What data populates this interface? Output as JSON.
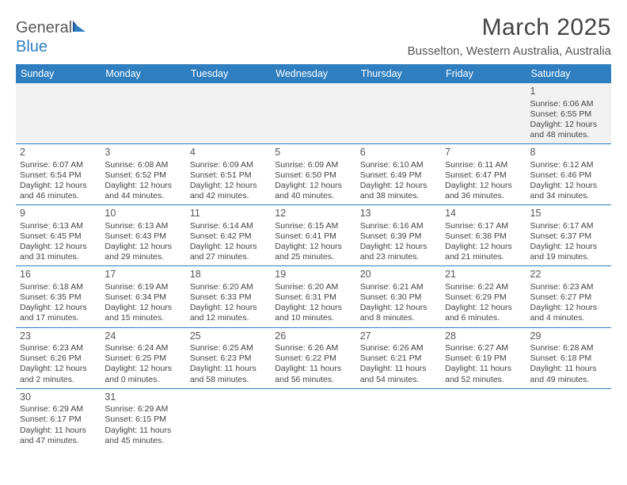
{
  "header": {
    "logo_word1": "General",
    "logo_word2": "Blue",
    "title": "March 2025",
    "subtitle": "Busselton, Western Australia, Australia"
  },
  "colors": {
    "accent": "#2f7fc0",
    "text": "#444444",
    "grid_bg_first_row": "#f1f1f1",
    "header_text": "#ffffff"
  },
  "weekdays": [
    "Sunday",
    "Monday",
    "Tuesday",
    "Wednesday",
    "Thursday",
    "Friday",
    "Saturday"
  ],
  "weeks": [
    [
      null,
      null,
      null,
      null,
      null,
      null,
      {
        "day": "1",
        "sunrise": "Sunrise: 6:06 AM",
        "sunset": "Sunset: 6:55 PM",
        "daylight": "Daylight: 12 hours and 48 minutes."
      }
    ],
    [
      {
        "day": "2",
        "sunrise": "Sunrise: 6:07 AM",
        "sunset": "Sunset: 6:54 PM",
        "daylight": "Daylight: 12 hours and 46 minutes."
      },
      {
        "day": "3",
        "sunrise": "Sunrise: 6:08 AM",
        "sunset": "Sunset: 6:52 PM",
        "daylight": "Daylight: 12 hours and 44 minutes."
      },
      {
        "day": "4",
        "sunrise": "Sunrise: 6:09 AM",
        "sunset": "Sunset: 6:51 PM",
        "daylight": "Daylight: 12 hours and 42 minutes."
      },
      {
        "day": "5",
        "sunrise": "Sunrise: 6:09 AM",
        "sunset": "Sunset: 6:50 PM",
        "daylight": "Daylight: 12 hours and 40 minutes."
      },
      {
        "day": "6",
        "sunrise": "Sunrise: 6:10 AM",
        "sunset": "Sunset: 6:49 PM",
        "daylight": "Daylight: 12 hours and 38 minutes."
      },
      {
        "day": "7",
        "sunrise": "Sunrise: 6:11 AM",
        "sunset": "Sunset: 6:47 PM",
        "daylight": "Daylight: 12 hours and 36 minutes."
      },
      {
        "day": "8",
        "sunrise": "Sunrise: 6:12 AM",
        "sunset": "Sunset: 6:46 PM",
        "daylight": "Daylight: 12 hours and 34 minutes."
      }
    ],
    [
      {
        "day": "9",
        "sunrise": "Sunrise: 6:13 AM",
        "sunset": "Sunset: 6:45 PM",
        "daylight": "Daylight: 12 hours and 31 minutes."
      },
      {
        "day": "10",
        "sunrise": "Sunrise: 6:13 AM",
        "sunset": "Sunset: 6:43 PM",
        "daylight": "Daylight: 12 hours and 29 minutes."
      },
      {
        "day": "11",
        "sunrise": "Sunrise: 6:14 AM",
        "sunset": "Sunset: 6:42 PM",
        "daylight": "Daylight: 12 hours and 27 minutes."
      },
      {
        "day": "12",
        "sunrise": "Sunrise: 6:15 AM",
        "sunset": "Sunset: 6:41 PM",
        "daylight": "Daylight: 12 hours and 25 minutes."
      },
      {
        "day": "13",
        "sunrise": "Sunrise: 6:16 AM",
        "sunset": "Sunset: 6:39 PM",
        "daylight": "Daylight: 12 hours and 23 minutes."
      },
      {
        "day": "14",
        "sunrise": "Sunrise: 6:17 AM",
        "sunset": "Sunset: 6:38 PM",
        "daylight": "Daylight: 12 hours and 21 minutes."
      },
      {
        "day": "15",
        "sunrise": "Sunrise: 6:17 AM",
        "sunset": "Sunset: 6:37 PM",
        "daylight": "Daylight: 12 hours and 19 minutes."
      }
    ],
    [
      {
        "day": "16",
        "sunrise": "Sunrise: 6:18 AM",
        "sunset": "Sunset: 6:35 PM",
        "daylight": "Daylight: 12 hours and 17 minutes."
      },
      {
        "day": "17",
        "sunrise": "Sunrise: 6:19 AM",
        "sunset": "Sunset: 6:34 PM",
        "daylight": "Daylight: 12 hours and 15 minutes."
      },
      {
        "day": "18",
        "sunrise": "Sunrise: 6:20 AM",
        "sunset": "Sunset: 6:33 PM",
        "daylight": "Daylight: 12 hours and 12 minutes."
      },
      {
        "day": "19",
        "sunrise": "Sunrise: 6:20 AM",
        "sunset": "Sunset: 6:31 PM",
        "daylight": "Daylight: 12 hours and 10 minutes."
      },
      {
        "day": "20",
        "sunrise": "Sunrise: 6:21 AM",
        "sunset": "Sunset: 6:30 PM",
        "daylight": "Daylight: 12 hours and 8 minutes."
      },
      {
        "day": "21",
        "sunrise": "Sunrise: 6:22 AM",
        "sunset": "Sunset: 6:29 PM",
        "daylight": "Daylight: 12 hours and 6 minutes."
      },
      {
        "day": "22",
        "sunrise": "Sunrise: 6:23 AM",
        "sunset": "Sunset: 6:27 PM",
        "daylight": "Daylight: 12 hours and 4 minutes."
      }
    ],
    [
      {
        "day": "23",
        "sunrise": "Sunrise: 6:23 AM",
        "sunset": "Sunset: 6:26 PM",
        "daylight": "Daylight: 12 hours and 2 minutes."
      },
      {
        "day": "24",
        "sunrise": "Sunrise: 6:24 AM",
        "sunset": "Sunset: 6:25 PM",
        "daylight": "Daylight: 12 hours and 0 minutes."
      },
      {
        "day": "25",
        "sunrise": "Sunrise: 6:25 AM",
        "sunset": "Sunset: 6:23 PM",
        "daylight": "Daylight: 11 hours and 58 minutes."
      },
      {
        "day": "26",
        "sunrise": "Sunrise: 6:26 AM",
        "sunset": "Sunset: 6:22 PM",
        "daylight": "Daylight: 11 hours and 56 minutes."
      },
      {
        "day": "27",
        "sunrise": "Sunrise: 6:26 AM",
        "sunset": "Sunset: 6:21 PM",
        "daylight": "Daylight: 11 hours and 54 minutes."
      },
      {
        "day": "28",
        "sunrise": "Sunrise: 6:27 AM",
        "sunset": "Sunset: 6:19 PM",
        "daylight": "Daylight: 11 hours and 52 minutes."
      },
      {
        "day": "29",
        "sunrise": "Sunrise: 6:28 AM",
        "sunset": "Sunset: 6:18 PM",
        "daylight": "Daylight: 11 hours and 49 minutes."
      }
    ],
    [
      {
        "day": "30",
        "sunrise": "Sunrise: 6:29 AM",
        "sunset": "Sunset: 6:17 PM",
        "daylight": "Daylight: 11 hours and 47 minutes."
      },
      {
        "day": "31",
        "sunrise": "Sunrise: 6:29 AM",
        "sunset": "Sunset: 6:15 PM",
        "daylight": "Daylight: 11 hours and 45 minutes."
      },
      null,
      null,
      null,
      null,
      null
    ]
  ]
}
